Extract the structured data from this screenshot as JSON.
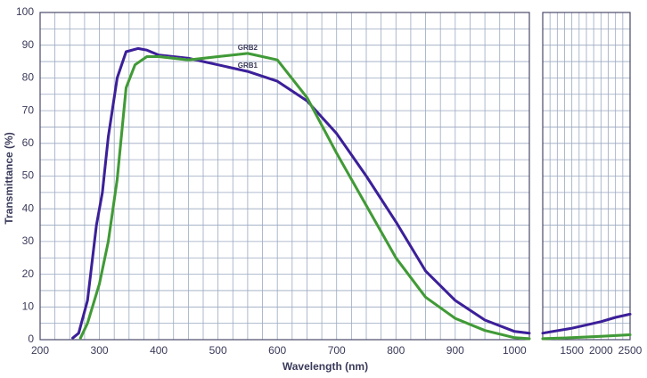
{
  "chart_data": [
    {
      "type": "line",
      "xlabel": "Wavelength (nm)",
      "ylabel": "Transmittance (%)",
      "xlim": [
        200,
        1025
      ],
      "ylim": [
        0,
        100
      ],
      "xticks": [
        200,
        300,
        400,
        500,
        600,
        700,
        800,
        900,
        1000
      ],
      "yticks": [
        0,
        10,
        20,
        30,
        40,
        50,
        60,
        70,
        80,
        90,
        100
      ],
      "xgrid": [
        225,
        250,
        275,
        325,
        350,
        375,
        425,
        450,
        475,
        525,
        550,
        575,
        625,
        650,
        675,
        725,
        750,
        775,
        825,
        850,
        875,
        925,
        950,
        975
      ],
      "ygrid": [
        5,
        15,
        25,
        35,
        45,
        55,
        65,
        75,
        85,
        95
      ],
      "series": [
        {
          "name": "GRB1",
          "color": "#3b1f9e",
          "x": [
            255,
            265,
            280,
            295,
            305,
            315,
            330,
            345,
            365,
            380,
            400,
            450,
            500,
            550,
            600,
            650,
            700,
            750,
            800,
            850,
            900,
            950,
            1000,
            1025
          ],
          "values": [
            0.5,
            2,
            12,
            35,
            45,
            62,
            80,
            88,
            89,
            88.5,
            87,
            86,
            84,
            82,
            79,
            73,
            63,
            50,
            36,
            21,
            12,
            6,
            2.5,
            2
          ]
        },
        {
          "name": "GRB2",
          "color": "#3f9a3a",
          "x": [
            268,
            280,
            300,
            315,
            330,
            345,
            360,
            380,
            400,
            450,
            500,
            550,
            600,
            650,
            700,
            750,
            800,
            850,
            900,
            950,
            1000,
            1025
          ],
          "values": [
            0.5,
            5,
            17,
            30,
            49,
            77,
            84,
            86.5,
            86.5,
            85.5,
            86.5,
            87.5,
            85.5,
            74,
            57,
            41,
            25,
            13,
            6.5,
            2.8,
            0.6,
            0.3
          ]
        }
      ]
    },
    {
      "type": "line",
      "xlim": [
        1000,
        2500
      ],
      "ylim": [
        0,
        100
      ],
      "xticks": [
        1500,
        2000,
        2500
      ],
      "xgrid": [
        1125,
        1250,
        1375,
        1625,
        1750,
        1875,
        2125,
        2250,
        2375
      ],
      "ygrid": [
        5,
        10,
        15,
        20,
        25,
        30,
        35,
        40,
        45,
        50,
        55,
        60,
        65,
        70,
        75,
        80,
        85,
        90,
        95
      ],
      "series": [
        {
          "color": "#3b1f9e",
          "x": [
            1000,
            1500,
            2000,
            2250,
            2500
          ],
          "values": [
            2,
            3.5,
            5.5,
            6.8,
            7.8
          ]
        },
        {
          "color": "#3f9a3a",
          "x": [
            1000,
            1500,
            2000,
            2500
          ],
          "values": [
            0.3,
            0.6,
            1,
            1.5
          ]
        }
      ]
    }
  ]
}
